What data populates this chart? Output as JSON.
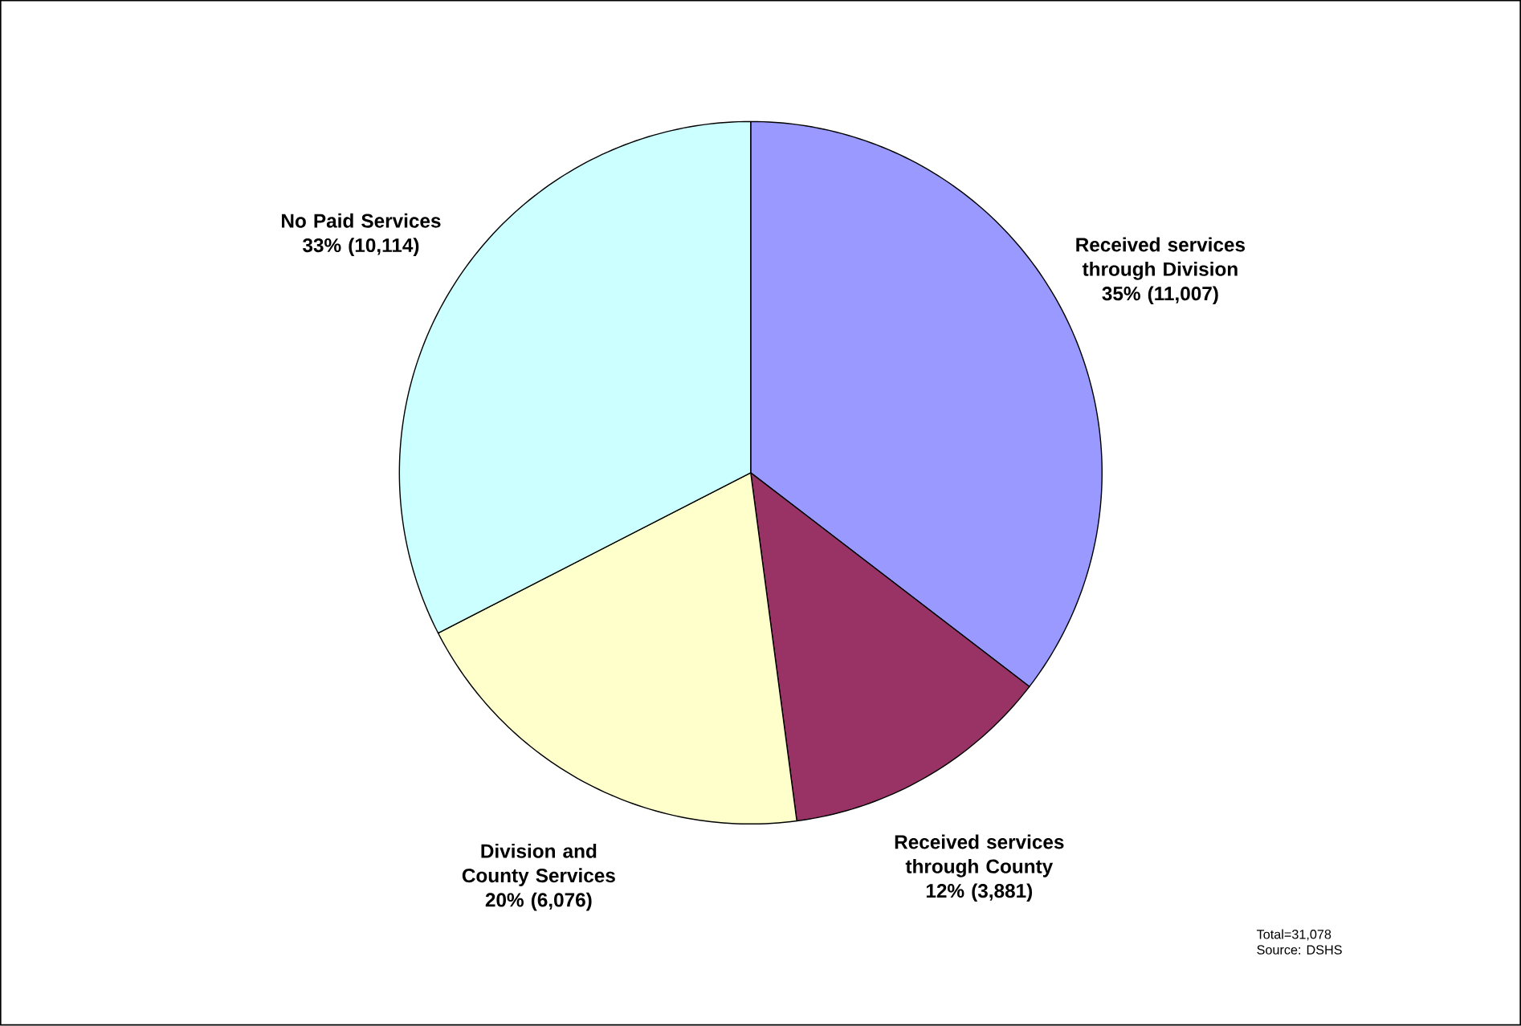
{
  "chart_data": {
    "type": "pie",
    "categories": [
      "Received services through Division",
      "Received services through County",
      "Division and County Services",
      "No Paid Services"
    ],
    "values": [
      11007,
      3881,
      6076,
      10114
    ],
    "colors": [
      "#9999ff",
      "#993366",
      "#ffffcc",
      "#ccffff"
    ],
    "value_labels": [
      "35% (11,007)",
      "12% (3,881)",
      "20% (6,076)",
      "33% (10,114)"
    ],
    "annotations": [
      "Total=31,078",
      "Source: DSHS"
    ]
  }
}
